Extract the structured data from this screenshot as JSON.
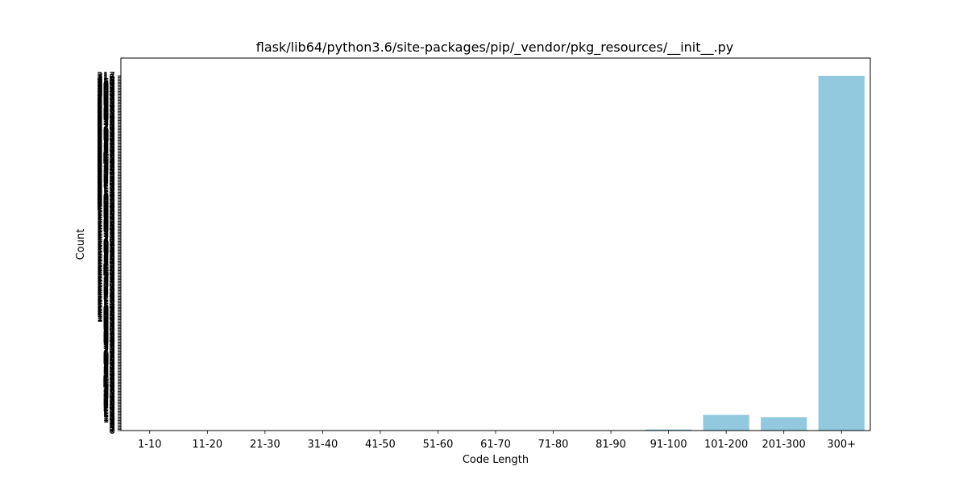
{
  "chart_data": {
    "type": "bar",
    "title": "flask/lib64/python3.6/site-packages/pip/_vendor/pkg_resources/__init__.py",
    "xlabel": "Code Length",
    "ylabel": "Count",
    "categories": [
      "1-10",
      "11-20",
      "21-30",
      "31-40",
      "41-50",
      "51-60",
      "61-70",
      "71-80",
      "81-90",
      "91-100",
      "101-200",
      "201-300",
      "300+"
    ],
    "values": [
      0,
      0,
      0,
      0,
      0,
      0,
      0,
      0,
      0,
      1,
      14,
      12,
      317
    ],
    "ylim": [
      0,
      317
    ],
    "bar_color": "#92c9df",
    "grid": false,
    "legend": "none"
  }
}
